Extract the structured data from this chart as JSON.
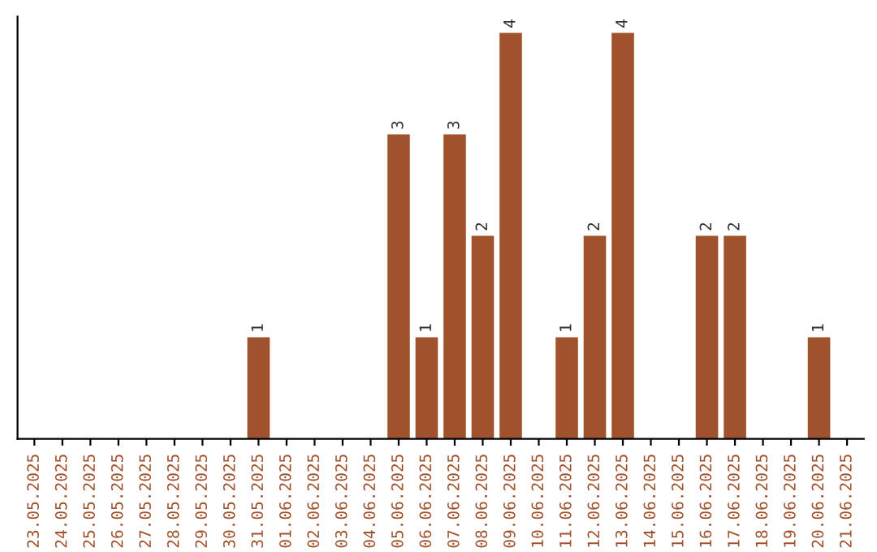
{
  "chart_data": {
    "type": "bar",
    "categories": [
      "23.05.2025",
      "24.05.2025",
      "25.05.2025",
      "26.05.2025",
      "27.05.2025",
      "28.05.2025",
      "29.05.2025",
      "30.05.2025",
      "31.05.2025",
      "01.06.2025",
      "02.06.2025",
      "03.06.2025",
      "04.06.2025",
      "05.06.2025",
      "06.06.2025",
      "07.06.2025",
      "08.06.2025",
      "09.06.2025",
      "10.06.2025",
      "11.06.2025",
      "12.06.2025",
      "13.06.2025",
      "14.06.2025",
      "15.06.2025",
      "16.06.2025",
      "17.06.2025",
      "18.06.2025",
      "19.06.2025",
      "20.06.2025",
      "21.06.2025"
    ],
    "values": [
      0,
      0,
      0,
      0,
      0,
      0,
      0,
      0,
      1,
      0,
      0,
      0,
      0,
      3,
      1,
      3,
      2,
      4,
      0,
      1,
      2,
      4,
      0,
      0,
      2,
      2,
      0,
      0,
      1,
      0
    ],
    "value_labels": [
      null,
      null,
      null,
      null,
      null,
      null,
      null,
      null,
      "1",
      null,
      null,
      null,
      null,
      "3",
      "1",
      "3",
      "2",
      "4",
      null,
      "1",
      "2",
      "4",
      null,
      null,
      "2",
      "2",
      null,
      null,
      "1",
      null
    ],
    "color": "#a0522d",
    "tick_labels": "x",
    "grid": false,
    "legend": false
  }
}
